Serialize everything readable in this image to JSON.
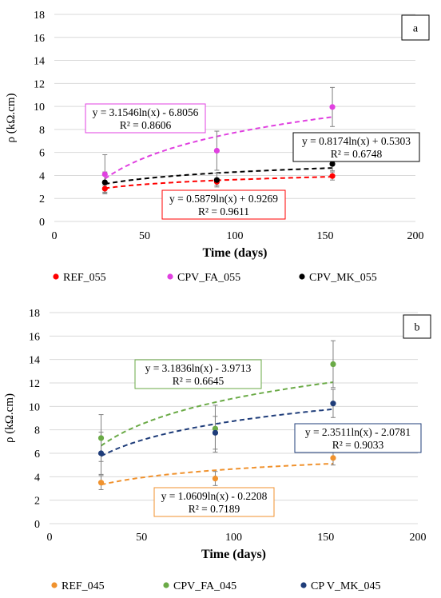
{
  "chart_data": [
    {
      "type": "scatter",
      "panel_label": "a",
      "xlabel": "Time (days)",
      "ylabel": "ρ (kΩ.cm)",
      "xlim": [
        0,
        200
      ],
      "ylim": [
        0,
        18
      ],
      "x_ticks": [
        0,
        50,
        100,
        150,
        200
      ],
      "y_ticks": [
        0,
        2,
        4,
        6,
        8,
        10,
        12,
        14,
        16,
        18
      ],
      "grid": "horizontal",
      "legend_position": "bottom",
      "x": [
        28,
        90,
        154
      ],
      "series": [
        {
          "name": "REF_055",
          "color": "#ff0000",
          "values": [
            2.85,
            3.45,
            3.95
          ],
          "error": [
            0.3,
            0.3,
            0.35
          ],
          "trendline": {
            "a": 0.5879,
            "b": 0.9269,
            "equation": "y = 0.5879ln(x) + 0.9269",
            "r2": "R² = 0.9611"
          }
        },
        {
          "name": "CPV_FA_055",
          "color": "#e040e0",
          "values": [
            4.1,
            6.15,
            9.95
          ],
          "error": [
            1.7,
            1.7,
            1.7
          ],
          "trendline": {
            "a": 3.1546,
            "b": -6.8056,
            "equation": "y = 3.1546ln(x) - 6.8056",
            "r2": "R² = 0.8606"
          }
        },
        {
          "name": "CPV_MK_055",
          "color": "#000000",
          "values": [
            3.4,
            3.6,
            5.0
          ],
          "error": [
            0.9,
            0.6,
            0.6
          ],
          "trendline": {
            "a": 0.8174,
            "b": 0.5303,
            "equation": "y = 0.8174ln(x) + 0.5303",
            "r2": "R² = 0.6748"
          }
        }
      ]
    },
    {
      "type": "scatter",
      "panel_label": "b",
      "xlabel": "Time (days)",
      "ylabel": "ρ (kΩ.cm)",
      "xlim": [
        0,
        200
      ],
      "ylim": [
        0,
        18
      ],
      "x_ticks": [
        0,
        50,
        100,
        150,
        200
      ],
      "y_ticks": [
        0,
        2,
        4,
        6,
        8,
        10,
        12,
        14,
        16,
        18
      ],
      "grid": "horizontal",
      "legend_position": "bottom",
      "x": [
        28,
        90,
        154
      ],
      "series": [
        {
          "name": "REF_045",
          "color": "#f0922e",
          "values": [
            3.5,
            3.85,
            5.6
          ],
          "error": [
            0.6,
            0.6,
            0.6
          ],
          "trendline": {
            "a": 1.0609,
            "b": -0.2208,
            "equation": "y = 1.0609ln(x) - 0.2208",
            "r2": "R² = 0.7189"
          }
        },
        {
          "name": "CPV_FA_045",
          "color": "#6aaa46",
          "values": [
            7.3,
            8.1,
            13.6
          ],
          "error": [
            2.0,
            2.0,
            2.0
          ],
          "trendline": {
            "a": 3.1836,
            "b": -3.9713,
            "equation": "y = 3.1836ln(x) - 3.9713",
            "r2": "R² = 0.6645"
          }
        },
        {
          "name": "CP V_MK_045",
          "color": "#1f3d7a",
          "values": [
            6.0,
            7.75,
            10.25
          ],
          "error": [
            1.8,
            1.4,
            1.2
          ],
          "trendline": {
            "a": 2.3511,
            "b": -2.0781,
            "equation": "y = 2.3511ln(x) - 2.0781",
            "r2": "R² = 0.9033"
          }
        }
      ]
    }
  ]
}
